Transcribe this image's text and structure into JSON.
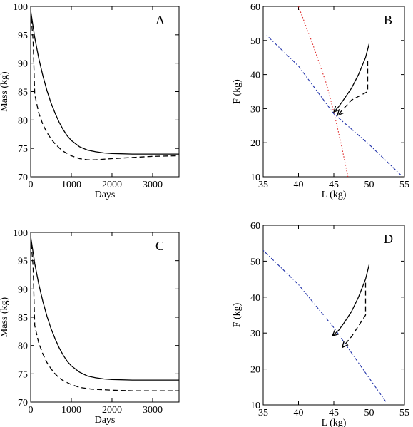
{
  "chart_data": [
    {
      "id": "A",
      "type": "line",
      "title": "A",
      "xlabel": "Days",
      "ylabel": "Mass (kg)",
      "xlim": [
        0,
        3650
      ],
      "ylim": [
        70,
        100
      ],
      "xticks": [
        0,
        1000,
        2000,
        3000
      ],
      "yticks": [
        70,
        75,
        80,
        85,
        90,
        95,
        100
      ],
      "grid": false,
      "series": [
        {
          "style": "solid",
          "points": [
            [
              0,
              99.3
            ],
            [
              100,
              94.5
            ],
            [
              200,
              90.8
            ],
            [
              300,
              87.8
            ],
            [
              400,
              85.2
            ],
            [
              500,
              83.0
            ],
            [
              600,
              81.2
            ],
            [
              700,
              79.6
            ],
            [
              800,
              78.3
            ],
            [
              900,
              77.2
            ],
            [
              1000,
              76.4
            ],
            [
              1200,
              75.3
            ],
            [
              1400,
              74.7
            ],
            [
              1600,
              74.4
            ],
            [
              1800,
              74.2
            ],
            [
              2000,
              74.1
            ],
            [
              2500,
              74.0
            ],
            [
              3000,
              74.0
            ],
            [
              3650,
              74.0
            ]
          ]
        },
        {
          "style": "dashed",
          "points": [
            [
              0,
              99.3
            ],
            [
              60,
              94.0
            ],
            [
              100,
              84.5
            ],
            [
              200,
              81.2
            ],
            [
              300,
              79.2
            ],
            [
              400,
              77.8
            ],
            [
              500,
              76.7
            ],
            [
              600,
              75.8
            ],
            [
              700,
              75.1
            ],
            [
              800,
              74.5
            ],
            [
              1000,
              73.7
            ],
            [
              1200,
              73.2
            ],
            [
              1400,
              73.0
            ],
            [
              1600,
              73.0
            ],
            [
              2000,
              73.2
            ],
            [
              2500,
              73.4
            ],
            [
              3000,
              73.6
            ],
            [
              3650,
              73.7
            ]
          ]
        }
      ]
    },
    {
      "id": "B",
      "type": "line",
      "title": "B",
      "xlabel": "L (kg)",
      "ylabel": "F (kg)",
      "xlim": [
        35,
        55
      ],
      "ylim": [
        10,
        60
      ],
      "xticks": [
        35,
        40,
        45,
        50,
        55
      ],
      "yticks": [
        10,
        20,
        30,
        40,
        50,
        60
      ],
      "grid": false,
      "series": [
        {
          "style": "dotted-blue",
          "points": [
            [
              35.5,
              51.5
            ],
            [
              40,
              42.5
            ],
            [
              45,
              28.5
            ],
            [
              50,
              19.5
            ],
            [
              54.5,
              10.5
            ]
          ]
        },
        {
          "style": "dotted-red",
          "points": [
            [
              40,
              60
            ],
            [
              42,
              49
            ],
            [
              44,
              37
            ],
            [
              45,
              29
            ],
            [
              46,
              20
            ],
            [
              47,
              10
            ]
          ]
        },
        {
          "style": "solid",
          "points": [
            [
              50,
              49
            ],
            [
              49.5,
              45
            ],
            [
              48.5,
              40
            ],
            [
              47.5,
              36
            ],
            [
              46.5,
              33
            ],
            [
              45.7,
              30.6
            ],
            [
              45,
              29
            ]
          ]
        },
        {
          "style": "dashed",
          "points": [
            [
              49.8,
              44
            ],
            [
              49.8,
              35
            ],
            [
              47.5,
              32.5
            ],
            [
              45.5,
              28
            ]
          ]
        }
      ]
    },
    {
      "id": "C",
      "type": "line",
      "title": "C",
      "xlabel": "Days",
      "ylabel": "Mass (kg)",
      "xlim": [
        0,
        3650
      ],
      "ylim": [
        70,
        100
      ],
      "xticks": [
        0,
        1000,
        2000,
        3000
      ],
      "yticks": [
        70,
        75,
        80,
        85,
        90,
        95,
        100
      ],
      "grid": false,
      "series": [
        {
          "style": "solid",
          "points": [
            [
              0,
              99.3
            ],
            [
              100,
              94.5
            ],
            [
              200,
              90.8
            ],
            [
              300,
              87.8
            ],
            [
              400,
              85.2
            ],
            [
              500,
              83.0
            ],
            [
              600,
              81.2
            ],
            [
              700,
              79.6
            ],
            [
              800,
              78.3
            ],
            [
              900,
              77.2
            ],
            [
              1000,
              76.4
            ],
            [
              1200,
              75.3
            ],
            [
              1400,
              74.6
            ],
            [
              1600,
              74.3
            ],
            [
              1800,
              74.1
            ],
            [
              2000,
              74.0
            ],
            [
              2500,
              73.9
            ],
            [
              3000,
              73.9
            ],
            [
              3650,
              73.9
            ]
          ]
        },
        {
          "style": "dashed",
          "points": [
            [
              0,
              99.3
            ],
            [
              60,
              94.0
            ],
            [
              100,
              83.5
            ],
            [
              200,
              80.4
            ],
            [
              300,
              78.5
            ],
            [
              400,
              77.0
            ],
            [
              500,
              75.9
            ],
            [
              600,
              75.0
            ],
            [
              700,
              74.3
            ],
            [
              800,
              73.8
            ],
            [
              1000,
              73.1
            ],
            [
              1200,
              72.6
            ],
            [
              1500,
              72.3
            ],
            [
              2000,
              72.1
            ],
            [
              2500,
              72.0
            ],
            [
              3000,
              72.0
            ],
            [
              3650,
              72.0
            ]
          ]
        }
      ]
    },
    {
      "id": "D",
      "type": "line",
      "title": "D",
      "xlabel": "L (kg)",
      "ylabel": "F (kg)",
      "xlim": [
        35,
        55
      ],
      "ylim": [
        10,
        60
      ],
      "xticks": [
        35,
        40,
        45,
        50,
        55
      ],
      "yticks": [
        10,
        20,
        30,
        40,
        50,
        60
      ],
      "grid": false,
      "series": [
        {
          "style": "dotted-blue",
          "points": [
            [
              35,
              53
            ],
            [
              40,
              43.5
            ],
            [
              45,
              31.5
            ],
            [
              50,
              17.5
            ],
            [
              52.5,
              10.5
            ]
          ]
        },
        {
          "style": "solid",
          "points": [
            [
              50,
              49
            ],
            [
              49.5,
              45
            ],
            [
              48.5,
              40
            ],
            [
              47.5,
              36
            ],
            [
              46.5,
              33
            ],
            [
              45.7,
              30.8
            ],
            [
              44.8,
              29.2
            ]
          ]
        },
        {
          "style": "dashed",
          "points": [
            [
              49.5,
              44
            ],
            [
              49.5,
              35
            ],
            [
              47.5,
              29
            ],
            [
              46.2,
              26
            ]
          ]
        }
      ]
    }
  ]
}
